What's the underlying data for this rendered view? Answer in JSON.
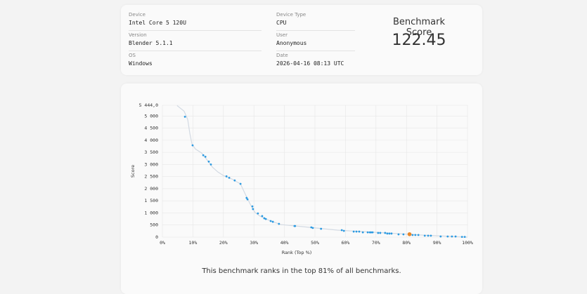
{
  "info": [
    {
      "label": "Device",
      "value": "Intel Core 5 120U"
    },
    {
      "label": "Version",
      "value": "Blender 5.1.1"
    },
    {
      "label": "OS",
      "value": "Windows"
    },
    {
      "label": "Device Type",
      "value": "CPU"
    },
    {
      "label": "User",
      "value": "Anonymous"
    },
    {
      "label": "Date",
      "value": "2026-04-16 08:13 UTC"
    }
  ],
  "score": {
    "title": "Benchmark Score",
    "value": "122.45"
  },
  "caption": "This benchmark ranks in the top 81% of all benchmarks.",
  "chart_data": {
    "type": "scatter",
    "xlabel": "Rank (Top %)",
    "ylabel": "Score",
    "xlim": [
      0,
      100
    ],
    "ylim": [
      0,
      5444
    ],
    "xticks": [
      {
        "value": 0,
        "label": "0%"
      },
      {
        "value": 10,
        "label": "10%"
      },
      {
        "value": 20,
        "label": "20%"
      },
      {
        "value": 30,
        "label": "30%"
      },
      {
        "value": 40,
        "label": "40%"
      },
      {
        "value": 50,
        "label": "50%"
      },
      {
        "value": 60,
        "label": "60%"
      },
      {
        "value": 70,
        "label": "70%"
      },
      {
        "value": 80,
        "label": "80%"
      },
      {
        "value": 90,
        "label": "90%"
      },
      {
        "value": 100,
        "label": "100%"
      }
    ],
    "yticks": [
      0,
      500,
      {
        "value": 1000,
        "label": "1 000"
      },
      {
        "value": 1500,
        "label": "1 500"
      },
      {
        "value": 2000,
        "label": "2 000"
      },
      {
        "value": 2500,
        "label": "2 500"
      },
      {
        "value": 3000,
        "label": "3 000"
      },
      {
        "value": 3500,
        "label": "3 500"
      },
      {
        "value": 4000,
        "label": "4 000"
      },
      {
        "value": 4500,
        "label": "4 500"
      },
      {
        "value": 5000,
        "label": "5 000"
      },
      {
        "value": 5444,
        "label": "5 444,0"
      }
    ],
    "grid": true,
    "series": [
      {
        "type": "line",
        "color": "#d3dae3",
        "x": [
          4.8,
          7.1,
          8.3,
          9.0,
          9.7,
          10.8,
          12.9,
          14.7,
          16.4,
          18.2,
          20.0,
          22.8,
          25.6,
          27.0,
          28.1,
          29.3,
          30.4,
          32.0,
          35.5,
          38.9,
          45.9,
          57.4,
          73.5,
          85.0,
          100
        ],
        "values": [
          5433,
          5202,
          4855,
          4277,
          3844,
          3641,
          3468,
          3179,
          2890,
          2688,
          2543,
          2399,
          2196,
          1821,
          1532,
          1243,
          1012,
          867,
          665,
          520,
          434,
          289,
          173,
          87,
          0
        ]
      },
      {
        "type": "scatter",
        "color": "#2d9be2",
        "x": [
          7.4,
          9.9,
          13.4,
          14.1,
          15.2,
          15.9,
          21.0,
          21.9,
          23.7,
          25.6,
          27.6,
          27.9,
          29.5,
          29.7,
          31.3,
          32.7,
          33.4,
          33.9,
          35.5,
          36.2,
          38.2,
          43.3,
          43.5,
          48.8,
          49.3,
          52.0,
          58.8,
          59.5,
          62.7,
          63.6,
          64.5,
          65.7,
          67.3,
          68.0,
          68.4,
          68.9,
          70.7,
          71.4,
          73.0,
          73.7,
          74.4,
          75.1,
          77.4,
          79.0,
          82.0,
          82.9,
          83.9,
          86.0,
          87.1,
          88.0,
          91.2,
          93.5,
          94.9,
          96.1,
          98.2,
          99.1
        ],
        "values": [
          4970,
          3790,
          3380,
          3320,
          3120,
          3000,
          2510,
          2450,
          2340,
          2200,
          1620,
          1560,
          1270,
          1160,
          980,
          870,
          780,
          750,
          665,
          635,
          550,
          460,
          460,
          405,
          380,
          345,
          290,
          260,
          230,
          230,
          230,
          200,
          200,
          200,
          200,
          200,
          175,
          175,
          175,
          150,
          150,
          150,
          115,
          115,
          90,
          90,
          90,
          60,
          60,
          60,
          30,
          30,
          30,
          30,
          10,
          10
        ]
      },
      {
        "type": "scatter",
        "color": "#e8872b",
        "x": [
          81
        ],
        "values": [
          122.45
        ]
      }
    ]
  }
}
